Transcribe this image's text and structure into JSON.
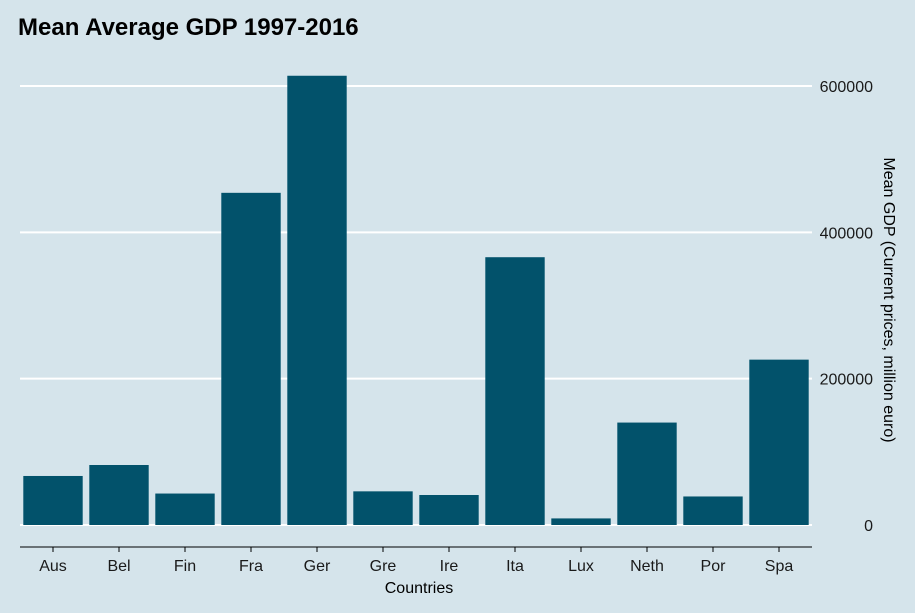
{
  "chart_data": {
    "type": "bar",
    "title": "Mean Average GDP 1997-2016",
    "xlabel": "Countries",
    "ylabel": "Mean GDP (Current prices, million euro)",
    "categories": [
      "Aus",
      "Bel",
      "Fin",
      "Fra",
      "Ger",
      "Gre",
      "Ire",
      "Ita",
      "Lux",
      "Neth",
      "Por",
      "Spa"
    ],
    "values": [
      67000,
      82000,
      43000,
      454000,
      614000,
      46000,
      41000,
      366000,
      9000,
      140000,
      39000,
      226000
    ],
    "ylim": [
      0,
      640000
    ],
    "yticks": [
      0,
      200000,
      400000,
      600000
    ],
    "ytick_labels": [
      "0",
      "200000",
      "400000",
      "600000"
    ],
    "y_axis_position": "right",
    "grid": "horizontal",
    "legend": "none",
    "colors": {
      "bar": "#02526b",
      "background": "#d5e4eb",
      "grid": "#ffffff",
      "axis": "#000000"
    }
  }
}
